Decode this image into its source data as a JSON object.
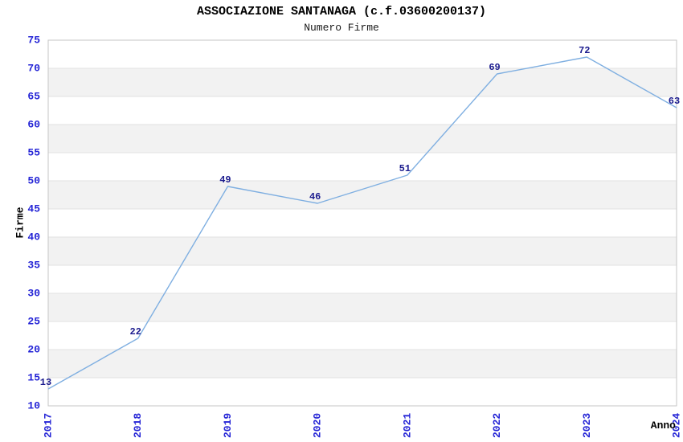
{
  "title": "ASSOCIAZIONE SANTANAGA (c.f.03600200137)",
  "subtitle": "Numero Firme",
  "chart_data": {
    "type": "line",
    "x": [
      "2017",
      "2018",
      "2019",
      "2020",
      "2021",
      "2022",
      "2023",
      "2024"
    ],
    "series": [
      {
        "name": "Numero Firme",
        "values": [
          13,
          22,
          49,
          46,
          51,
          69,
          72,
          63
        ]
      }
    ],
    "title": "ASSOCIAZIONE SANTANAGA (c.f.03600200137)",
    "subtitle": "Numero Firme",
    "xlabel": "Anno",
    "ylabel": "Firme",
    "ylim": [
      10,
      75
    ],
    "ytick_step": 5,
    "yticks": [
      10,
      15,
      20,
      25,
      30,
      35,
      40,
      45,
      50,
      55,
      60,
      65,
      70,
      75
    ],
    "grid": "alternating-horizontal-bands",
    "legend": "none",
    "data_labels_shown": true
  },
  "colors": {
    "line": "#7FAFE1",
    "tick_label": "#2424D6",
    "point_label": "#1B1B8E",
    "band_fill": "#F2F2F2",
    "grid_line": "#E1E1E1",
    "plot_border": "#C6C6C6",
    "title_text": "#000000",
    "background": "#FFFFFF"
  }
}
